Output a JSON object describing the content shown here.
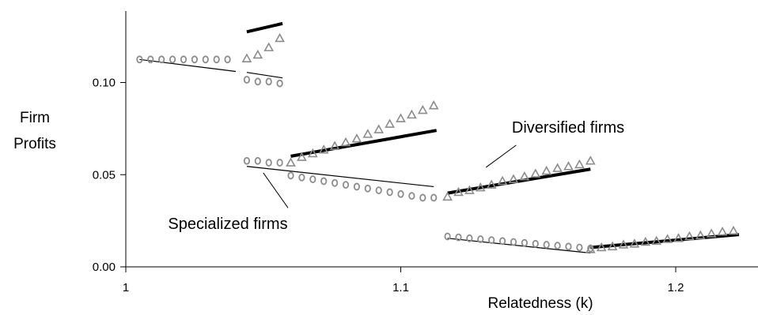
{
  "chart_data": {
    "type": "scatter",
    "xlabel": "Relatedness (k)",
    "ylabel": [
      "Firm",
      "Profits"
    ],
    "xlim": [
      1.0,
      1.23
    ],
    "ylim": [
      0.0,
      0.14
    ],
    "x_ticks": [
      1,
      1.1,
      1.2
    ],
    "x_tick_labels": [
      "1",
      "1.1",
      "1.2"
    ],
    "y_ticks": [
      0.0,
      0.05,
      0.1
    ],
    "y_tick_labels": [
      "0.00",
      "0.05",
      "0.10"
    ],
    "grid": false,
    "annotations": [
      {
        "text": "Diversified firms",
        "x": 1.145,
        "y": 0.075,
        "pointer": {
          "from": [
            1.142,
            0.066
          ],
          "to": [
            1.131,
            0.054
          ]
        }
      },
      {
        "text": "Specialized firms",
        "x": 1.068,
        "y": 0.022,
        "pointer": {
          "from": [
            1.059,
            0.032
          ],
          "to": [
            1.05,
            0.051
          ]
        }
      }
    ],
    "series": [
      {
        "marker": "circle",
        "color": "#8c8c8c",
        "points": [
          [
            1.005,
            0.1125
          ],
          [
            1.009,
            0.1125
          ],
          [
            1.013,
            0.1125
          ],
          [
            1.017,
            0.1125
          ],
          [
            1.021,
            0.1125
          ],
          [
            1.025,
            0.1125
          ],
          [
            1.029,
            0.1125
          ],
          [
            1.033,
            0.1125
          ],
          [
            1.037,
            0.1125
          ],
          [
            1.044,
            0.1015
          ],
          [
            1.048,
            0.1005
          ],
          [
            1.052,
            0.1005
          ],
          [
            1.056,
            0.0995
          ],
          [
            1.044,
            0.0575
          ],
          [
            1.048,
            0.0575
          ],
          [
            1.052,
            0.0565
          ],
          [
            1.056,
            0.0565
          ],
          [
            1.06,
            0.0495
          ],
          [
            1.064,
            0.0485
          ],
          [
            1.068,
            0.0475
          ],
          [
            1.072,
            0.0465
          ],
          [
            1.076,
            0.0455
          ],
          [
            1.08,
            0.0445
          ],
          [
            1.084,
            0.0435
          ],
          [
            1.088,
            0.0425
          ],
          [
            1.092,
            0.0415
          ],
          [
            1.096,
            0.0405
          ],
          [
            1.1,
            0.0395
          ],
          [
            1.104,
            0.0385
          ],
          [
            1.108,
            0.0375
          ],
          [
            1.112,
            0.0375
          ],
          [
            1.117,
            0.0165
          ],
          [
            1.121,
            0.016
          ],
          [
            1.125,
            0.0155
          ],
          [
            1.129,
            0.015
          ],
          [
            1.133,
            0.0145
          ],
          [
            1.137,
            0.014
          ],
          [
            1.141,
            0.0135
          ],
          [
            1.145,
            0.013
          ],
          [
            1.149,
            0.0125
          ],
          [
            1.153,
            0.012
          ],
          [
            1.157,
            0.0115
          ],
          [
            1.161,
            0.011
          ],
          [
            1.165,
            0.0105
          ],
          [
            1.169,
            0.01
          ]
        ]
      },
      {
        "marker": "triangle",
        "color": "#8c8c8c",
        "points": [
          [
            1.044,
            0.113
          ],
          [
            1.048,
            0.115
          ],
          [
            1.052,
            0.119
          ],
          [
            1.056,
            0.124
          ],
          [
            1.06,
            0.0565
          ],
          [
            1.064,
            0.0595
          ],
          [
            1.068,
            0.0615
          ],
          [
            1.072,
            0.0635
          ],
          [
            1.076,
            0.0655
          ],
          [
            1.08,
            0.0675
          ],
          [
            1.084,
            0.0695
          ],
          [
            1.088,
            0.072
          ],
          [
            1.092,
            0.0745
          ],
          [
            1.096,
            0.0775
          ],
          [
            1.1,
            0.0805
          ],
          [
            1.104,
            0.0825
          ],
          [
            1.108,
            0.085
          ],
          [
            1.112,
            0.0875
          ],
          [
            1.117,
            0.038
          ],
          [
            1.121,
            0.0405
          ],
          [
            1.125,
            0.0415
          ],
          [
            1.129,
            0.043
          ],
          [
            1.133,
            0.0445
          ],
          [
            1.137,
            0.0465
          ],
          [
            1.141,
            0.0475
          ],
          [
            1.145,
            0.049
          ],
          [
            1.149,
            0.0505
          ],
          [
            1.153,
            0.052
          ],
          [
            1.157,
            0.0535
          ],
          [
            1.161,
            0.0545
          ],
          [
            1.165,
            0.0555
          ],
          [
            1.169,
            0.0575
          ],
          [
            1.169,
            0.0095
          ],
          [
            1.173,
            0.0105
          ],
          [
            1.177,
            0.011
          ],
          [
            1.181,
            0.012
          ],
          [
            1.185,
            0.0125
          ],
          [
            1.189,
            0.0135
          ],
          [
            1.193,
            0.014
          ],
          [
            1.197,
            0.015
          ],
          [
            1.201,
            0.0155
          ],
          [
            1.205,
            0.0165
          ],
          [
            1.209,
            0.017
          ],
          [
            1.213,
            0.018
          ],
          [
            1.217,
            0.019
          ],
          [
            1.221,
            0.0195
          ]
        ]
      }
    ],
    "lines": [
      {
        "kind": "thin",
        "from": [
          1.005,
          0.1125
        ],
        "to": [
          1.04,
          0.106
        ]
      },
      {
        "kind": "thin",
        "from": [
          1.044,
          0.1055
        ],
        "to": [
          1.057,
          0.1025
        ]
      },
      {
        "kind": "thick",
        "from": [
          1.044,
          0.1275
        ],
        "to": [
          1.057,
          0.132
        ]
      },
      {
        "kind": "thin",
        "from": [
          1.044,
          0.0545
        ],
        "to": [
          1.112,
          0.0435
        ]
      },
      {
        "kind": "thick",
        "from": [
          1.06,
          0.06
        ],
        "to": [
          1.113,
          0.074
        ]
      },
      {
        "kind": "thin",
        "from": [
          1.117,
          0.0155
        ],
        "to": [
          1.169,
          0.0075
        ]
      },
      {
        "kind": "thick",
        "from": [
          1.117,
          0.04
        ],
        "to": [
          1.169,
          0.053
        ]
      },
      {
        "kind": "thick",
        "from": [
          1.169,
          0.0105
        ],
        "to": [
          1.223,
          0.0175
        ]
      }
    ]
  }
}
